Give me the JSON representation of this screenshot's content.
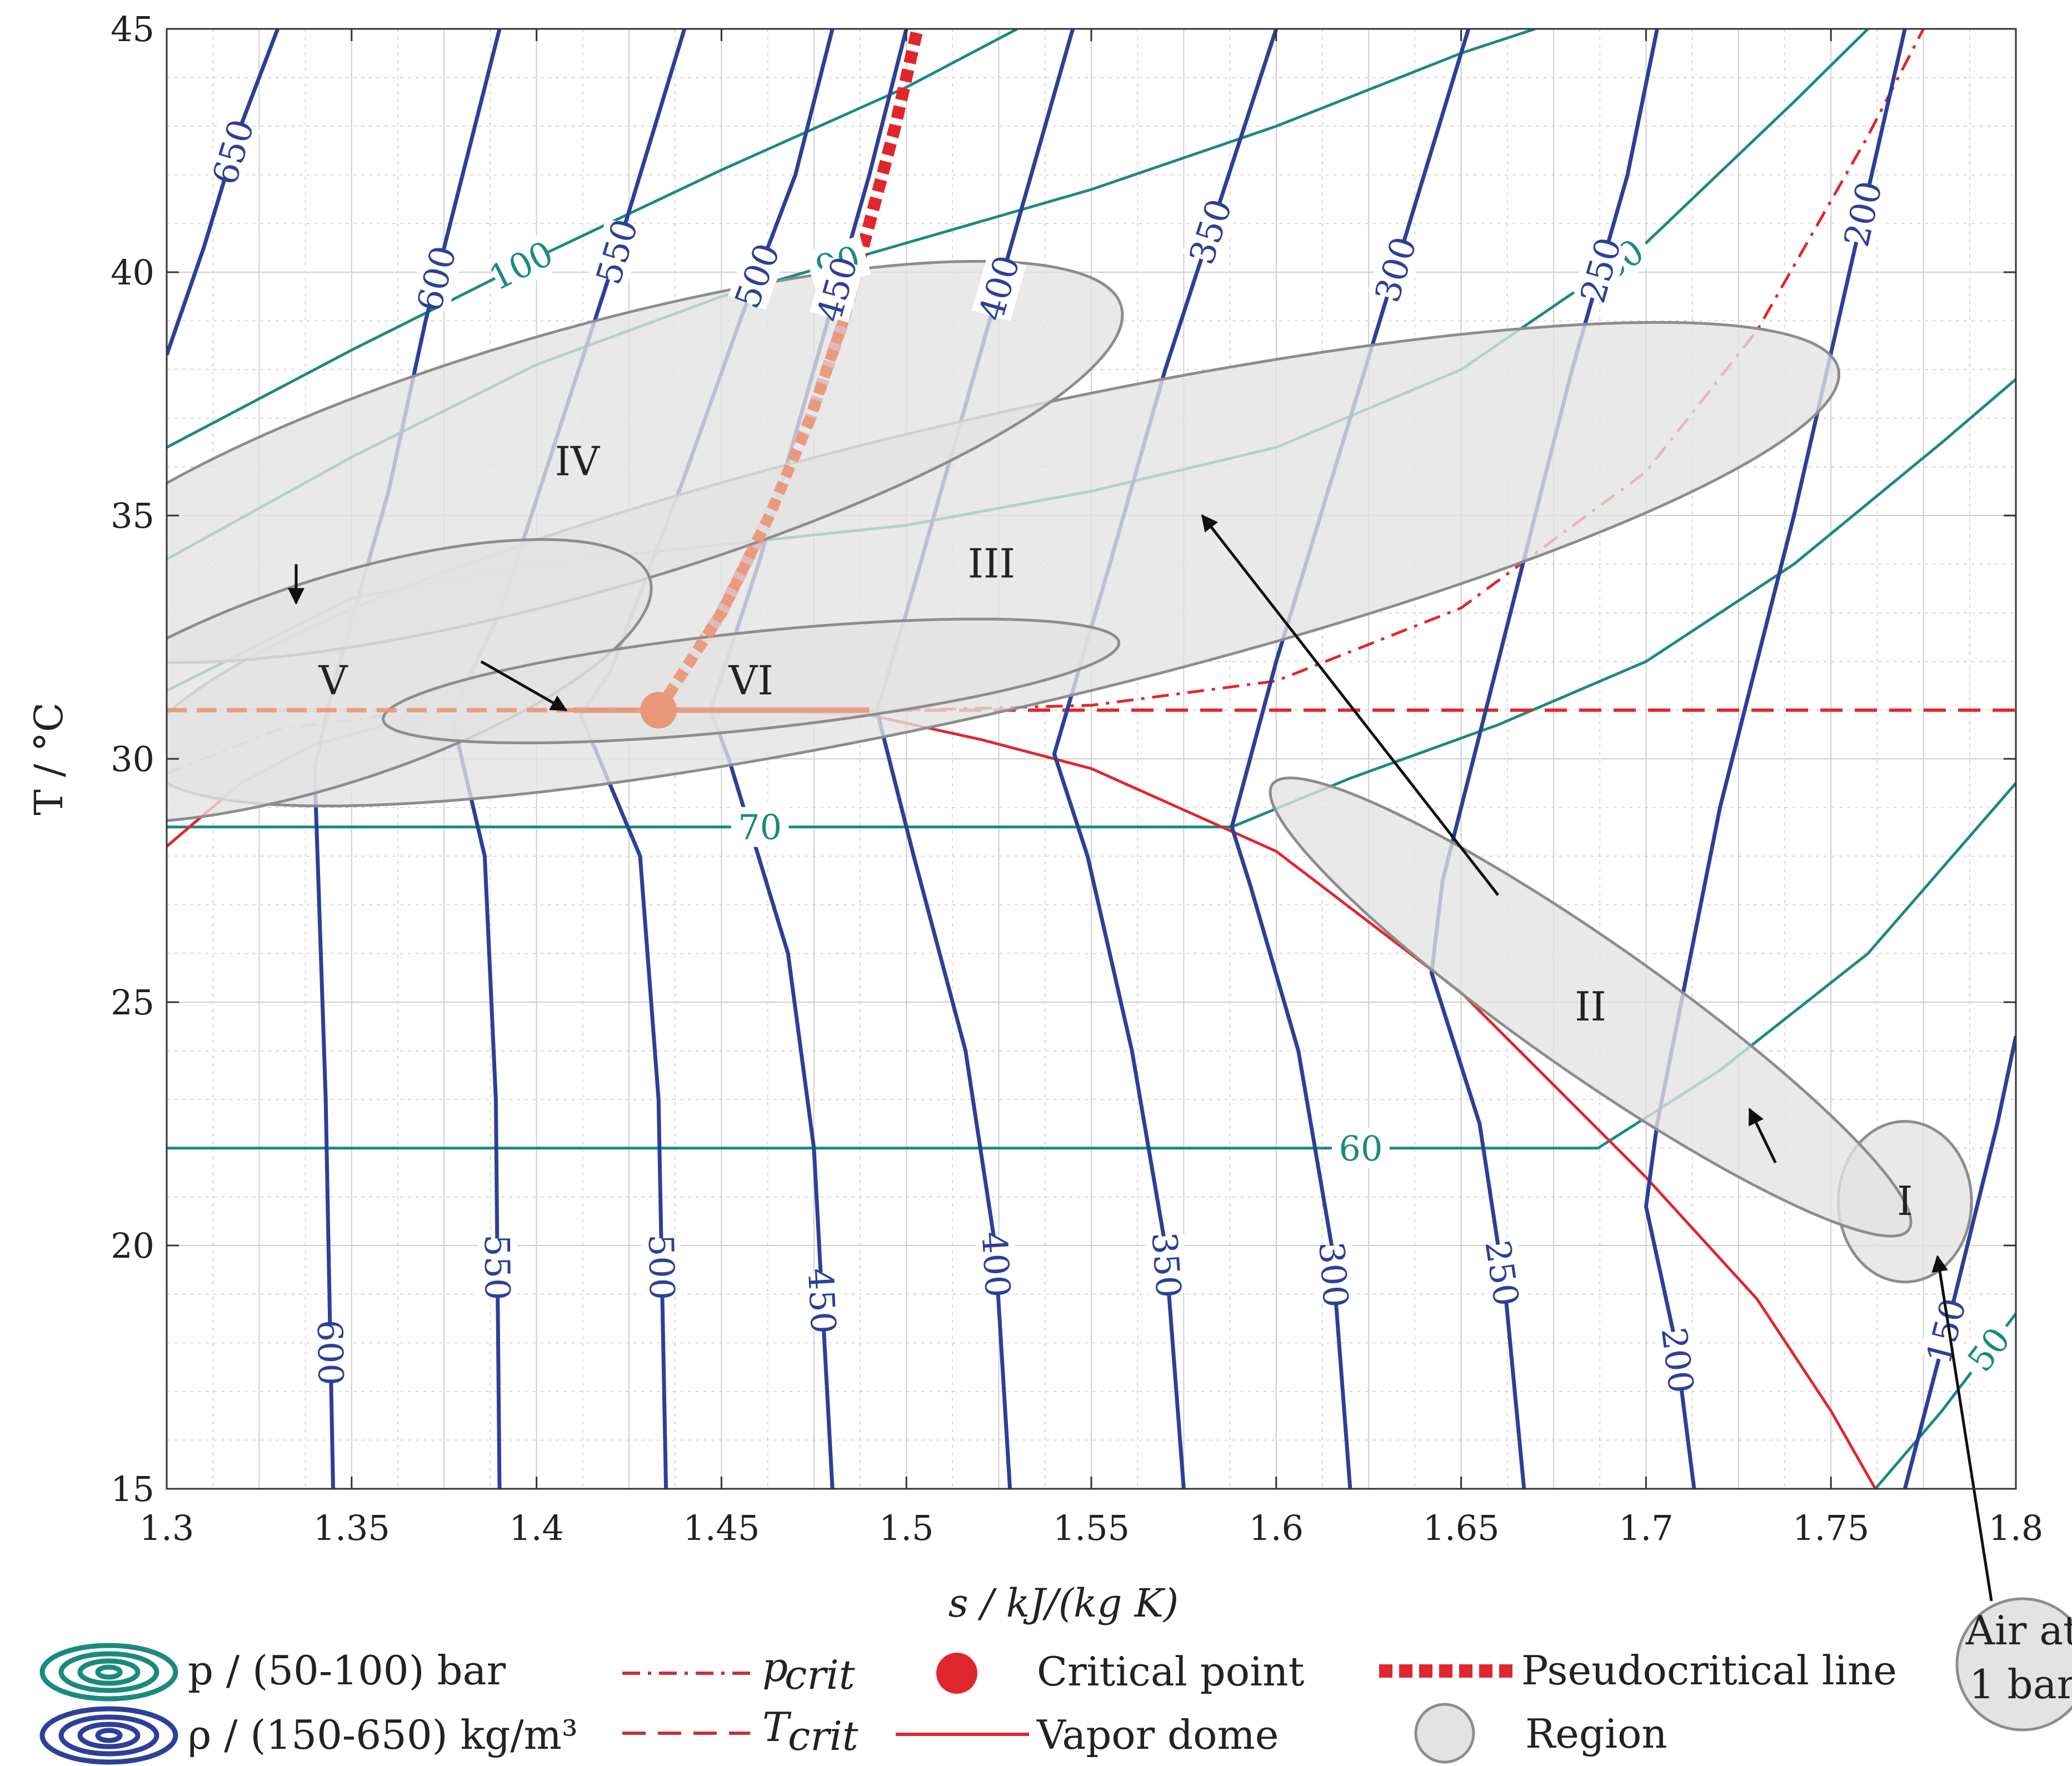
{
  "chart_data": {
    "type": "line",
    "xlabel": "s / kJ/(kg K)",
    "ylabel": "T / °C",
    "xlim": [
      1.3,
      1.8
    ],
    "ylim": [
      15,
      45
    ],
    "xticks": [
      1.3,
      1.35,
      1.4,
      1.45,
      1.5,
      1.55,
      1.6,
      1.65,
      1.7,
      1.75,
      1.8
    ],
    "yticks": [
      15,
      20,
      25,
      30,
      35,
      40,
      45
    ],
    "xtick_labels": [
      "1.3",
      "1.35",
      "1.4",
      "1.45",
      "1.5",
      "1.55",
      "1.6",
      "1.65",
      "1.7",
      "1.75",
      "1.8"
    ],
    "ytick_labels": [
      "15",
      "20",
      "25",
      "30",
      "35",
      "40",
      "45"
    ],
    "grid": true,
    "colors": {
      "isobar": "#1b8a7e",
      "isochore": "#2d3f97",
      "critical": "#e0262d",
      "region_fill": "#e3e3e3",
      "region_stroke": "#8d8d8d",
      "overlay": "#e9977a"
    },
    "critical_point": {
      "s": 1.433,
      "T": 31.0
    },
    "isobars": [
      {
        "p": 100,
        "label": "100",
        "points": [
          [
            1.3,
            36.4
          ],
          [
            1.35,
            38.4
          ],
          [
            1.4,
            40.3
          ],
          [
            1.45,
            42.1
          ],
          [
            1.5,
            43.8
          ],
          [
            1.53,
            45.0
          ]
        ]
      },
      {
        "p": 90,
        "label": "90",
        "points": [
          [
            1.3,
            34.1
          ],
          [
            1.35,
            36.2
          ],
          [
            1.4,
            38.1
          ],
          [
            1.45,
            39.5
          ],
          [
            1.5,
            40.6
          ],
          [
            1.55,
            41.7
          ],
          [
            1.6,
            43.0
          ],
          [
            1.65,
            44.5
          ],
          [
            1.67,
            45.0
          ]
        ]
      },
      {
        "p": 80,
        "label": "80",
        "points": [
          [
            1.3,
            31.4
          ],
          [
            1.35,
            33.3
          ],
          [
            1.4,
            34.0
          ],
          [
            1.45,
            34.4
          ],
          [
            1.5,
            34.8
          ],
          [
            1.55,
            35.5
          ],
          [
            1.6,
            36.4
          ],
          [
            1.65,
            38.0
          ],
          [
            1.7,
            40.6
          ],
          [
            1.74,
            43.5
          ],
          [
            1.76,
            45.0
          ]
        ]
      },
      {
        "p": 70,
        "label": "70",
        "points": [
          [
            1.3,
            28.6
          ],
          [
            1.35,
            28.6
          ],
          [
            1.4,
            28.6
          ],
          [
            1.45,
            28.6
          ],
          [
            1.5,
            28.6
          ],
          [
            1.55,
            28.6
          ],
          [
            1.588,
            28.6
          ],
          [
            1.62,
            29.6
          ],
          [
            1.66,
            30.7
          ],
          [
            1.7,
            32.0
          ],
          [
            1.74,
            34.0
          ],
          [
            1.78,
            36.5
          ],
          [
            1.8,
            37.8
          ]
        ]
      },
      {
        "p": 60,
        "label": "60",
        "points": [
          [
            1.3,
            22.0
          ],
          [
            1.4,
            22.0
          ],
          [
            1.5,
            22.0
          ],
          [
            1.6,
            22.0
          ],
          [
            1.687,
            22.0
          ],
          [
            1.72,
            23.6
          ],
          [
            1.76,
            26.0
          ],
          [
            1.8,
            29.5
          ]
        ]
      },
      {
        "p": 50,
        "label": "50",
        "points": [
          [
            1.762,
            15.0
          ],
          [
            1.78,
            16.6
          ],
          [
            1.8,
            18.6
          ]
        ]
      }
    ],
    "isochores": [
      {
        "rho": 650,
        "label": "650",
        "points": [
          [
            1.3,
            38.3
          ],
          [
            1.31,
            40.5
          ],
          [
            1.32,
            43.0
          ],
          [
            1.33,
            45.0
          ]
        ]
      },
      {
        "rho": 600,
        "label": "600",
        "points": [
          [
            1.345,
            15.0
          ],
          [
            1.343,
            23.0
          ],
          [
            1.34,
            29.8
          ],
          [
            1.345,
            31.5
          ],
          [
            1.36,
            35.5
          ],
          [
            1.37,
            39.0
          ],
          [
            1.38,
            42.0
          ],
          [
            1.39,
            45.0
          ]
        ]
      },
      {
        "rho": 550,
        "label": "550",
        "points": [
          [
            1.39,
            15.0
          ],
          [
            1.389,
            23.0
          ],
          [
            1.386,
            28.0
          ],
          [
            1.377,
            30.9
          ],
          [
            1.39,
            33.0
          ],
          [
            1.405,
            36.5
          ],
          [
            1.42,
            40.0
          ],
          [
            1.43,
            42.5
          ],
          [
            1.44,
            45.0
          ]
        ]
      },
      {
        "rho": 500,
        "label": "500",
        "points": [
          [
            1.435,
            15.0
          ],
          [
            1.433,
            23.0
          ],
          [
            1.428,
            28.0
          ],
          [
            1.412,
            30.9
          ],
          [
            1.42,
            31.8
          ],
          [
            1.44,
            35.8
          ],
          [
            1.455,
            39.0
          ],
          [
            1.47,
            42.0
          ],
          [
            1.48,
            45.0
          ]
        ]
      },
      {
        "rho": 450,
        "label": "450",
        "points": [
          [
            1.48,
            15.0
          ],
          [
            1.475,
            22.0
          ],
          [
            1.468,
            26.0
          ],
          [
            1.452,
            30.0
          ],
          [
            1.447,
            31.0
          ],
          [
            1.46,
            34.0
          ],
          [
            1.475,
            38.0
          ],
          [
            1.49,
            42.0
          ],
          [
            1.5,
            45.0
          ]
        ]
      },
      {
        "rho": 400,
        "label": "400",
        "points": [
          [
            1.528,
            15.0
          ],
          [
            1.524,
            20.0
          ],
          [
            1.516,
            24.0
          ],
          [
            1.502,
            28.0
          ],
          [
            1.492,
            31.0
          ],
          [
            1.5,
            33.0
          ],
          [
            1.515,
            37.0
          ],
          [
            1.53,
            41.0
          ],
          [
            1.545,
            45.0
          ]
        ]
      },
      {
        "rho": 350,
        "label": "350",
        "points": [
          [
            1.575,
            15.0
          ],
          [
            1.57,
            20.0
          ],
          [
            1.561,
            24.0
          ],
          [
            1.549,
            28.0
          ],
          [
            1.54,
            30.1
          ],
          [
            1.555,
            34.0
          ],
          [
            1.57,
            38.0
          ],
          [
            1.585,
            41.5
          ],
          [
            1.6,
            45.0
          ]
        ]
      },
      {
        "rho": 300,
        "label": "300",
        "points": [
          [
            1.62,
            15.0
          ],
          [
            1.615,
            20.0
          ],
          [
            1.606,
            24.0
          ],
          [
            1.593,
            27.4
          ],
          [
            1.588,
            28.6
          ],
          [
            1.6,
            32.0
          ],
          [
            1.62,
            37.0
          ],
          [
            1.64,
            42.0
          ],
          [
            1.652,
            45.0
          ]
        ]
      },
      {
        "rho": 250,
        "label": "250",
        "points": [
          [
            1.667,
            15.0
          ],
          [
            1.662,
            19.0
          ],
          [
            1.655,
            22.5
          ],
          [
            1.642,
            25.6
          ],
          [
            1.645,
            27.5
          ],
          [
            1.66,
            32.0
          ],
          [
            1.68,
            38.0
          ],
          [
            1.695,
            42.0
          ],
          [
            1.703,
            45.0
          ]
        ]
      },
      {
        "rho": 200,
        "label": "200",
        "points": [
          [
            1.713,
            15.0
          ],
          [
            1.708,
            18.0
          ],
          [
            1.7,
            20.8
          ],
          [
            1.703,
            22.5
          ],
          [
            1.72,
            29.0
          ],
          [
            1.74,
            35.0
          ],
          [
            1.758,
            41.0
          ],
          [
            1.77,
            45.0
          ]
        ]
      },
      {
        "rho": 150,
        "label": "150",
        "points": [
          [
            1.77,
            15.0
          ],
          [
            1.782,
            18.5
          ],
          [
            1.795,
            22.5
          ],
          [
            1.8,
            24.3
          ]
        ]
      }
    ],
    "vapor_dome": [
      [
        1.3,
        28.2
      ],
      [
        1.32,
        29.5
      ],
      [
        1.34,
        30.3
      ],
      [
        1.36,
        30.7
      ],
      [
        1.38,
        30.9
      ],
      [
        1.4,
        31.0
      ],
      [
        1.433,
        31.0
      ],
      [
        1.46,
        31.0
      ],
      [
        1.49,
        30.9
      ],
      [
        1.52,
        30.4
      ],
      [
        1.55,
        29.8
      ],
      [
        1.6,
        28.1
      ],
      [
        1.65,
        25.2
      ],
      [
        1.7,
        21.4
      ],
      [
        1.73,
        18.9
      ],
      [
        1.75,
        16.6
      ],
      [
        1.762,
        15.0
      ]
    ],
    "p_crit": [
      [
        1.3,
        29.7
      ],
      [
        1.33,
        30.6
      ],
      [
        1.37,
        31.0
      ],
      [
        1.433,
        31.0
      ],
      [
        1.5,
        31.0
      ],
      [
        1.55,
        31.1
      ],
      [
        1.6,
        31.6
      ],
      [
        1.65,
        33.1
      ],
      [
        1.7,
        35.9
      ],
      [
        1.73,
        38.8
      ],
      [
        1.76,
        42.8
      ],
      [
        1.775,
        45.0
      ]
    ],
    "T_crit": 31.0,
    "pseudocritical_line": [
      [
        1.433,
        31.0
      ],
      [
        1.45,
        33.0
      ],
      [
        1.463,
        35.0
      ],
      [
        1.474,
        37.0
      ],
      [
        1.483,
        39.0
      ],
      [
        1.49,
        41.0
      ],
      [
        1.497,
        43.0
      ],
      [
        1.503,
        45.0
      ]
    ],
    "regions": [
      {
        "id": "I",
        "label": "I",
        "s": 1.77,
        "T": 20.9,
        "rs": 0.018,
        "rT": 1.65,
        "angle": 0
      },
      {
        "id": "II",
        "label": "II",
        "s": 1.685,
        "T": 24.9,
        "rs": 0.105,
        "rT": 1.35,
        "angle": 35
      },
      {
        "id": "III",
        "label": "III",
        "s": 1.523,
        "T": 34.0,
        "rs": 0.235,
        "rT": 3.0,
        "angle": -13
      },
      {
        "id": "IV",
        "label": "IV",
        "s": 1.411,
        "T": 36.1,
        "rs": 0.153,
        "rT": 2.7,
        "angle": -16
      },
      {
        "id": "V",
        "label": "V",
        "s": 1.345,
        "T": 31.6,
        "rs": 0.09,
        "rT": 2.1,
        "angle": -18
      },
      {
        "id": "VI",
        "label": "VI",
        "s": 1.458,
        "T": 31.6,
        "rs": 0.1,
        "rT": 1.0,
        "angle": -6
      }
    ],
    "arrows": [
      {
        "from": [
          1.735,
          21.7
        ],
        "to": [
          1.728,
          22.8
        ]
      },
      {
        "from": [
          1.66,
          27.2
        ],
        "to": [
          1.58,
          35.0
        ]
      },
      {
        "from": [
          1.335,
          34.0
        ],
        "to": [
          1.335,
          33.2
        ]
      },
      {
        "from": [
          1.385,
          32.0
        ],
        "to": [
          1.408,
          31.0
        ]
      }
    ],
    "air": {
      "line1": "Air at",
      "line2": "1 bar"
    },
    "legend": [
      {
        "key": "isobar",
        "symbol": "contour-teal",
        "label": "p / (50-100) bar"
      },
      {
        "key": "isochore",
        "symbol": "contour-blue",
        "label": "ρ / (150-650) kg/m³"
      },
      {
        "key": "p_crit",
        "symbol": "dashdot-red",
        "label_main": "p",
        "label_sub": "crit"
      },
      {
        "key": "T_crit",
        "symbol": "dash-red",
        "label_main": "T",
        "label_sub": "crit"
      },
      {
        "key": "critical_point",
        "symbol": "dot-red",
        "label": "Critical point"
      },
      {
        "key": "vapor_dome",
        "symbol": "solid-red",
        "label": "Vapor dome"
      },
      {
        "key": "pseudocritical",
        "symbol": "thick-dotted-red",
        "label": "Pseudocritical line"
      },
      {
        "key": "region",
        "symbol": "gray-circle",
        "label": "Region"
      }
    ]
  }
}
